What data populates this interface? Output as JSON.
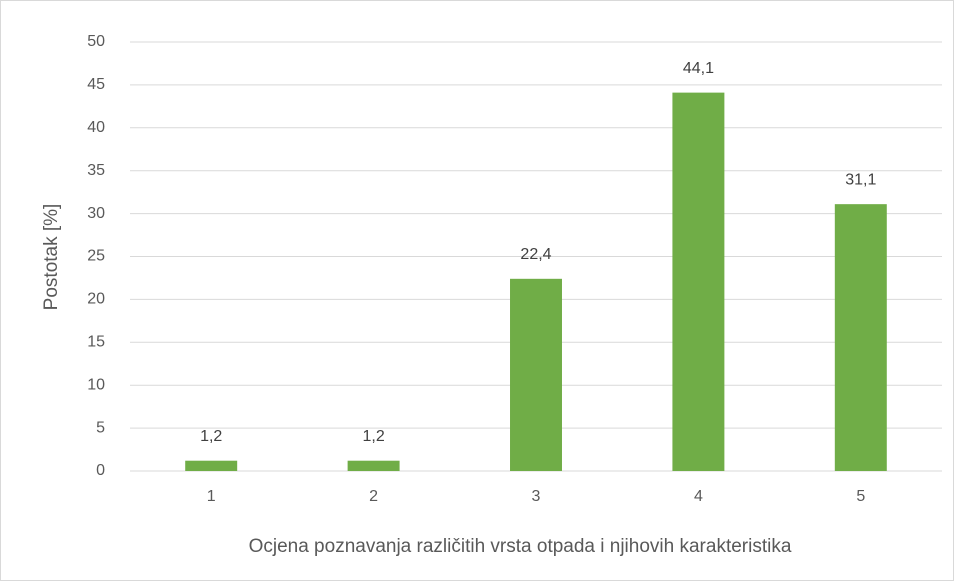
{
  "chart_data": {
    "type": "bar",
    "x_label": "Ocjena poznavanja različitih vrsta otpada i njihovih karakteristika",
    "y_label": "Postotak [%]",
    "categories": [
      "1",
      "2",
      "3",
      "4",
      "5"
    ],
    "values": [
      1.2,
      1.2,
      22.4,
      44.1,
      31.1
    ],
    "value_labels": [
      "1,2",
      "1,2",
      "22,4",
      "44,1",
      "31,1"
    ],
    "color": "#70ad47",
    "ylim": [
      0,
      50
    ],
    "yticks": [
      0,
      5,
      10,
      15,
      20,
      25,
      30,
      35,
      40,
      45,
      50
    ],
    "grid": true
  }
}
